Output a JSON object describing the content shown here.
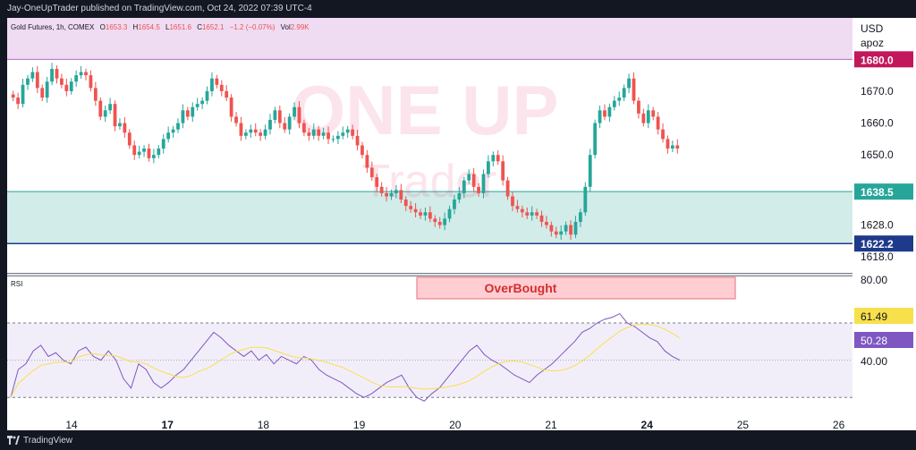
{
  "header": {
    "publish_line": "Jay-OneUpTrader published on TradingView.com, Oct 24, 2022 07:39 UTC-4"
  },
  "legend": {
    "symbol": "Gold Futures, 1h, COMEX",
    "o_label": "O",
    "o_value": "1653.3",
    "h_label": "H",
    "h_value": "1654.5",
    "l_label": "L",
    "l_value": "1651.6",
    "c_label": "C",
    "c_value": "1652.1",
    "change": "−1.2 (−0.07%)",
    "vol_label": "Vol",
    "vol_value": "2.99K"
  },
  "price_scale": {
    "currency": "USD",
    "unit": "apoz",
    "ticks": [
      "1670.0",
      "1660.0",
      "1650.0",
      "1628.0",
      "1618.0"
    ]
  },
  "price_labels": {
    "resistance": "1680.0",
    "support_top": "1638.5",
    "support_bottom": "1622.2"
  },
  "watermark": {
    "line1": "ONE UP",
    "line2": "Trader"
  },
  "rsi": {
    "label": "RSI",
    "ticks": [
      "80.00",
      "40.00"
    ],
    "value": "50.28",
    "ma_value": "61.49",
    "annotation": "OverBought"
  },
  "time_axis": [
    "14",
    "17",
    "18",
    "19",
    "20",
    "21",
    "24",
    "25",
    "26"
  ],
  "footer": {
    "brand": "TradingView"
  },
  "colors": {
    "up": "#26a69a",
    "down": "#ef5350",
    "resistance": "#e1bee7",
    "support": "#b2dfdb",
    "rsi_line": "#7e57c2",
    "rsi_ma": "#f7e04b",
    "overbought_fill": "#ffcdd2"
  },
  "chart_data": {
    "type": "candlestick",
    "price_range": [
      1613,
      1693
    ],
    "resistance_zone": [
      1680,
      1693
    ],
    "support_zone": [
      1622.2,
      1638.5
    ],
    "rsi_range": [
      20,
      95
    ],
    "rsi_band": [
      30,
      70
    ],
    "rsi_dotted": 50,
    "closes": [
      1668,
      1666,
      1672,
      1674,
      1676,
      1671,
      1668,
      1673,
      1677,
      1674,
      1672,
      1670,
      1673,
      1675,
      1676,
      1675,
      1671,
      1667,
      1662,
      1664,
      1666,
      1659,
      1660,
      1657,
      1653,
      1650,
      1651,
      1652,
      1649,
      1650,
      1652,
      1655,
      1657,
      1658,
      1660,
      1664,
      1662,
      1665,
      1666,
      1667,
      1670,
      1674,
      1672,
      1670,
      1668,
      1662,
      1660,
      1656,
      1657,
      1658,
      1657,
      1656,
      1658,
      1661,
      1664,
      1660,
      1658,
      1662,
      1665,
      1660,
      1657,
      1656,
      1658,
      1656,
      1657,
      1655,
      1655,
      1656,
      1657,
      1658,
      1656,
      1653,
      1650,
      1646,
      1643,
      1640,
      1638,
      1637,
      1638,
      1639,
      1636,
      1634,
      1633,
      1632,
      1631,
      1632,
      1630,
      1629,
      1628,
      1630,
      1633,
      1636,
      1638,
      1642,
      1644,
      1640,
      1638,
      1644,
      1648,
      1650,
      1648,
      1642,
      1637,
      1634,
      1633,
      1632,
      1631,
      1632,
      1631,
      1629,
      1628,
      1626,
      1625,
      1626,
      1628,
      1625,
      1629,
      1632,
      1640,
      1650,
      1660,
      1664,
      1662,
      1665,
      1667,
      1668,
      1671,
      1674,
      1667,
      1663,
      1660,
      1664,
      1662,
      1658,
      1655,
      1652,
      1653,
      1652
    ],
    "rsi_values": [
      30,
      45,
      48,
      55,
      58,
      52,
      54,
      50,
      48,
      55,
      57,
      52,
      50,
      55,
      50,
      40,
      35,
      48,
      45,
      38,
      35,
      38,
      42,
      45,
      50,
      55,
      60,
      65,
      62,
      58,
      55,
      52,
      55,
      50,
      53,
      48,
      52,
      50,
      48,
      52,
      50,
      45,
      42,
      40,
      38,
      35,
      32,
      30,
      32,
      35,
      38,
      40,
      42,
      35,
      30,
      28,
      32,
      35,
      40,
      45,
      50,
      55,
      58,
      53,
      50,
      48,
      45,
      42,
      40,
      38,
      42,
      45,
      48,
      52,
      56,
      60,
      65,
      67,
      70,
      72,
      73,
      75,
      70,
      68,
      65,
      62,
      60,
      55,
      52,
      50
    ]
  }
}
